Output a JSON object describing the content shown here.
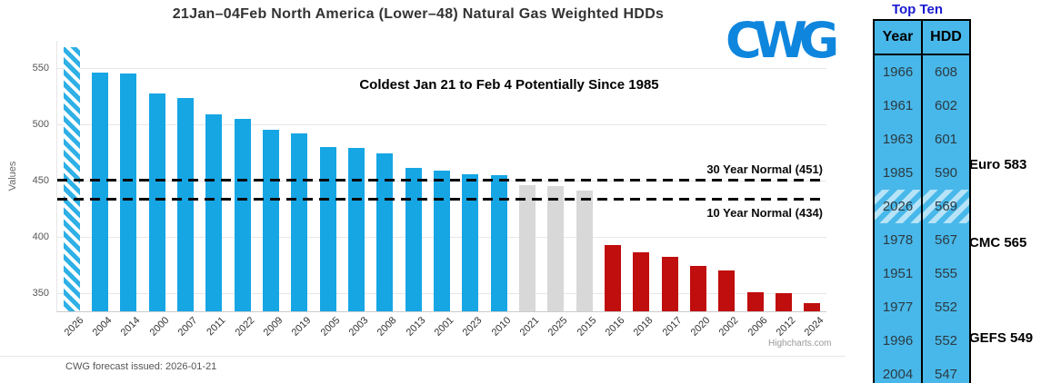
{
  "chart_data": {
    "type": "bar",
    "title": "21Jan–04Feb North America (Lower–48) Natural Gas Weighted HDDs",
    "annotation": "Coldest Jan 21 to Feb 4 Potentially Since 1985",
    "xlabel": "",
    "ylabel": "Values",
    "ylim": [
      335,
      575
    ],
    "yticks": [
      350,
      400,
      450,
      500,
      550
    ],
    "grid": true,
    "legend": "none",
    "categories": [
      "2026",
      "2004",
      "2014",
      "2000",
      "2007",
      "2011",
      "2022",
      "2009",
      "2019",
      "2005",
      "2003",
      "2008",
      "2013",
      "2001",
      "2023",
      "2010",
      "2021",
      "2025",
      "2015",
      "2016",
      "2018",
      "2017",
      "2020",
      "2002",
      "2006",
      "2012",
      "2024"
    ],
    "values": [
      569,
      547,
      546,
      528,
      524,
      510,
      506,
      496,
      493,
      481,
      480,
      475,
      462,
      460,
      457,
      456,
      447,
      446,
      442,
      394,
      387,
      383,
      375,
      371,
      352,
      351,
      342
    ],
    "styles": [
      "hatched",
      "blue",
      "blue",
      "blue",
      "blue",
      "blue",
      "blue",
      "blue",
      "blue",
      "blue",
      "blue",
      "blue",
      "blue",
      "blue",
      "blue",
      "blue",
      "gray",
      "gray",
      "gray",
      "red",
      "red",
      "red",
      "red",
      "red",
      "red",
      "red",
      "red"
    ],
    "reference_lines": [
      {
        "label": "30 Year Normal (451)",
        "value": 451,
        "label_side": "above"
      },
      {
        "label": "10 Year Normal (434)",
        "value": 434,
        "label_side": "below"
      }
    ]
  },
  "logo": {
    "text": "CWG"
  },
  "credit": "Highcharts.com",
  "footer_note": "CWG forecast issued: 2026-01-21",
  "table": {
    "title": "Top Ten",
    "columns": [
      "Year",
      "HDD"
    ],
    "rows": [
      [
        "1966",
        "608"
      ],
      [
        "1961",
        "602"
      ],
      [
        "1963",
        "601"
      ],
      [
        "1985",
        "590"
      ],
      [
        "2026",
        "569"
      ],
      [
        "1978",
        "567"
      ],
      [
        "1951",
        "555"
      ],
      [
        "1977",
        "552"
      ],
      [
        "1996",
        "552"
      ],
      [
        "2004",
        "547"
      ]
    ],
    "highlighted_year": "2026"
  },
  "model_labels": [
    {
      "text": "Euro 583"
    },
    {
      "text": "CMC 565"
    },
    {
      "text": "GEFS 549"
    }
  ],
  "colors": {
    "bar_blue": "#16a6e4",
    "bar_red": "#c00d0d",
    "bar_gray": "#d8d8d8",
    "hatch_blue": "#2fb0e6",
    "table_blue": "#48b8ea",
    "table_title_blue": "#1a1ad1",
    "logo_blue": "#0f86dd",
    "line_black": "#0a0a0a"
  }
}
